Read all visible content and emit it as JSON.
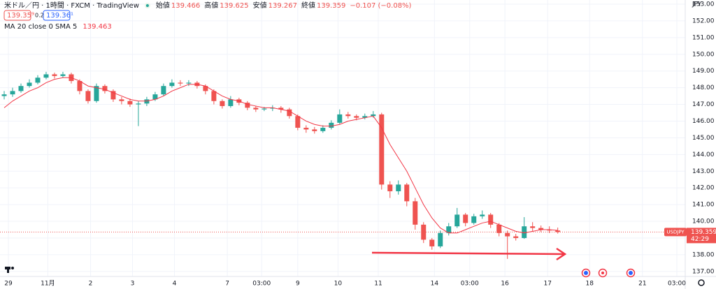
{
  "chart_data": {
    "type": "candlestick",
    "title": "米ドル／円 · 1時間 · FXCM · TradingView",
    "sell": "139.35⁹",
    "spread": "0.2",
    "buy": "139.36¹",
    "ohlc_legend": [
      {
        "label": "始値",
        "value": 139.466
      },
      {
        "label": "高値",
        "value": 139.625
      },
      {
        "label": "安値",
        "value": 139.267
      },
      {
        "label": "終値",
        "value": 139.359
      }
    ],
    "change": "−0.107 (−0.08%)",
    "y_unit": "JPY",
    "up_color": "#26a69a",
    "down_color": "#ef5350",
    "series": [
      {
        "name": "USDJPY",
        "open": [
          147.5,
          147.6,
          147.8,
          148.1,
          148.3,
          148.6,
          148.8,
          148.7,
          148.8,
          148.4,
          147.8,
          147.2,
          148.1,
          147.8,
          147.3,
          147.2,
          147.0,
          147.05,
          147.3,
          147.6,
          148.1,
          148.3,
          148.25,
          148.3,
          148.1,
          147.8,
          147.2,
          146.9,
          147.3,
          147.1,
          146.8,
          146.7,
          146.75,
          146.8,
          146.7,
          146.3,
          145.6,
          145.5,
          145.4,
          145.6,
          145.9,
          146.4,
          146.3,
          146.2,
          146.3,
          146.4,
          142.2,
          141.8,
          142.2,
          141.2,
          139.8,
          138.9,
          138.5,
          139.3,
          139.7,
          140.4,
          139.9,
          140.3,
          140.4,
          139.8,
          139.3,
          139.1,
          139.0,
          139.7,
          139.6,
          139.5,
          139.45
        ],
        "high": [
          147.8,
          148.0,
          148.25,
          148.5,
          148.75,
          148.95,
          148.9,
          148.95,
          148.9,
          148.5,
          147.9,
          148.25,
          148.2,
          147.9,
          147.45,
          147.35,
          147.2,
          147.45,
          147.75,
          148.25,
          148.5,
          148.45,
          148.45,
          148.4,
          148.2,
          147.9,
          147.3,
          147.5,
          147.4,
          147.2,
          146.9,
          146.85,
          146.95,
          146.9,
          146.8,
          146.4,
          145.75,
          145.65,
          145.75,
          146.05,
          146.7,
          146.55,
          146.4,
          146.45,
          146.6,
          146.5,
          142.4,
          142.45,
          142.3,
          141.4,
          139.95,
          139.0,
          139.45,
          139.9,
          140.8,
          140.5,
          140.45,
          140.65,
          140.5,
          139.9,
          139.45,
          139.25,
          140.25,
          139.95,
          139.75,
          139.7,
          139.625
        ],
        "low": [
          147.3,
          147.45,
          147.7,
          148.0,
          148.2,
          148.5,
          148.55,
          148.6,
          148.25,
          147.6,
          147.05,
          147.1,
          147.65,
          147.15,
          147.0,
          146.85,
          145.7,
          146.9,
          147.2,
          147.5,
          148.0,
          148.1,
          148.1,
          147.95,
          147.6,
          147.0,
          146.75,
          146.8,
          146.95,
          146.65,
          146.55,
          146.6,
          146.6,
          146.5,
          146.15,
          145.45,
          145.3,
          145.25,
          145.3,
          145.5,
          145.8,
          146.15,
          146.05,
          146.1,
          146.2,
          141.9,
          141.4,
          141.6,
          140.9,
          139.5,
          138.7,
          138.3,
          138.4,
          139.15,
          139.6,
          139.7,
          139.8,
          140.15,
          139.6,
          139.1,
          137.75,
          138.85,
          138.95,
          139.4,
          139.35,
          139.3,
          139.267
        ],
        "close": [
          147.6,
          147.8,
          148.1,
          148.3,
          148.6,
          148.8,
          148.7,
          148.8,
          148.4,
          147.8,
          147.2,
          148.1,
          147.8,
          147.3,
          147.2,
          147.0,
          147.05,
          147.3,
          147.6,
          148.1,
          148.3,
          148.25,
          148.3,
          148.1,
          147.8,
          147.2,
          146.9,
          147.3,
          147.1,
          146.8,
          146.7,
          146.75,
          146.8,
          146.7,
          146.3,
          145.6,
          145.5,
          145.4,
          145.6,
          145.9,
          146.4,
          146.3,
          146.2,
          146.3,
          146.4,
          142.2,
          141.8,
          142.2,
          141.2,
          139.8,
          138.9,
          138.5,
          139.3,
          139.7,
          140.4,
          139.9,
          140.3,
          140.4,
          139.8,
          139.3,
          139.1,
          139.0,
          139.7,
          139.6,
          139.5,
          139.45,
          139.359
        ]
      }
    ],
    "ma": {
      "name": "MA 20 close 0 SMA 5",
      "value": 139.463,
      "color": "#f23645",
      "values": [
        146.8,
        147.2,
        147.5,
        147.8,
        148.0,
        148.3,
        148.5,
        148.6,
        148.6,
        148.4,
        148.1,
        148.0,
        147.9,
        147.7,
        147.5,
        147.3,
        147.2,
        147.2,
        147.3,
        147.5,
        147.8,
        148.0,
        148.2,
        148.2,
        148.1,
        147.8,
        147.5,
        147.3,
        147.2,
        147.0,
        146.9,
        146.8,
        146.8,
        146.7,
        146.6,
        146.3,
        146.0,
        145.8,
        145.7,
        145.7,
        145.8,
        146.0,
        146.1,
        146.2,
        146.3,
        145.6,
        144.6,
        143.8,
        143.0,
        142.0,
        141.0,
        140.2,
        139.6,
        139.3,
        139.3,
        139.5,
        139.7,
        139.9,
        140.0,
        139.8,
        139.6,
        139.4,
        139.3,
        139.4,
        139.5,
        139.5,
        139.46
      ]
    },
    "last_price": 139.359,
    "countdown": "42:29",
    "ylim": [
      136.7,
      153.25
    ],
    "yticks": [
      {
        "value": 137,
        "label": "137.00"
      },
      {
        "value": 138,
        "label": "138.00"
      },
      {
        "value": 139,
        "label": "139.00"
      },
      {
        "value": 140,
        "label": "140.00"
      },
      {
        "value": 141,
        "label": "141.00"
      },
      {
        "value": 142,
        "label": "142.00"
      },
      {
        "value": 143,
        "label": "143.00"
      },
      {
        "value": 144,
        "label": "144.00"
      },
      {
        "value": 145,
        "label": "145.00"
      },
      {
        "value": 146,
        "label": "146.00"
      },
      {
        "value": 147,
        "label": "147.00"
      },
      {
        "value": 148,
        "label": "148.00"
      },
      {
        "value": 149,
        "label": "149.00"
      },
      {
        "value": 150,
        "label": "150.00"
      },
      {
        "value": 151,
        "label": "151.00"
      },
      {
        "value": 152,
        "label": "152.00"
      },
      {
        "value": 153,
        "label": "153.00"
      }
    ],
    "xlim": [
      0,
      81.7
    ],
    "xticks": [
      {
        "value": 1,
        "label": "29"
      },
      {
        "value": 5.7,
        "label": "11月"
      },
      {
        "value": 10.8,
        "label": "2"
      },
      {
        "value": 15.8,
        "label": "3"
      },
      {
        "value": 20.8,
        "label": "4"
      },
      {
        "value": 27.1,
        "label": "7"
      },
      {
        "value": 31.2,
        "label": "03:00"
      },
      {
        "value": 35.5,
        "label": "9"
      },
      {
        "value": 40.3,
        "label": "10"
      },
      {
        "value": 45.1,
        "label": "11"
      },
      {
        "value": 51.8,
        "label": "14"
      },
      {
        "value": 56,
        "label": "03:00"
      },
      {
        "value": 60.2,
        "label": "16"
      },
      {
        "value": 65.3,
        "label": "17"
      },
      {
        "value": 70.3,
        "label": "18"
      },
      {
        "value": 76.6,
        "label": "21"
      },
      {
        "value": 80.7,
        "label": "03:00"
      }
    ],
    "grid": true
  }
}
